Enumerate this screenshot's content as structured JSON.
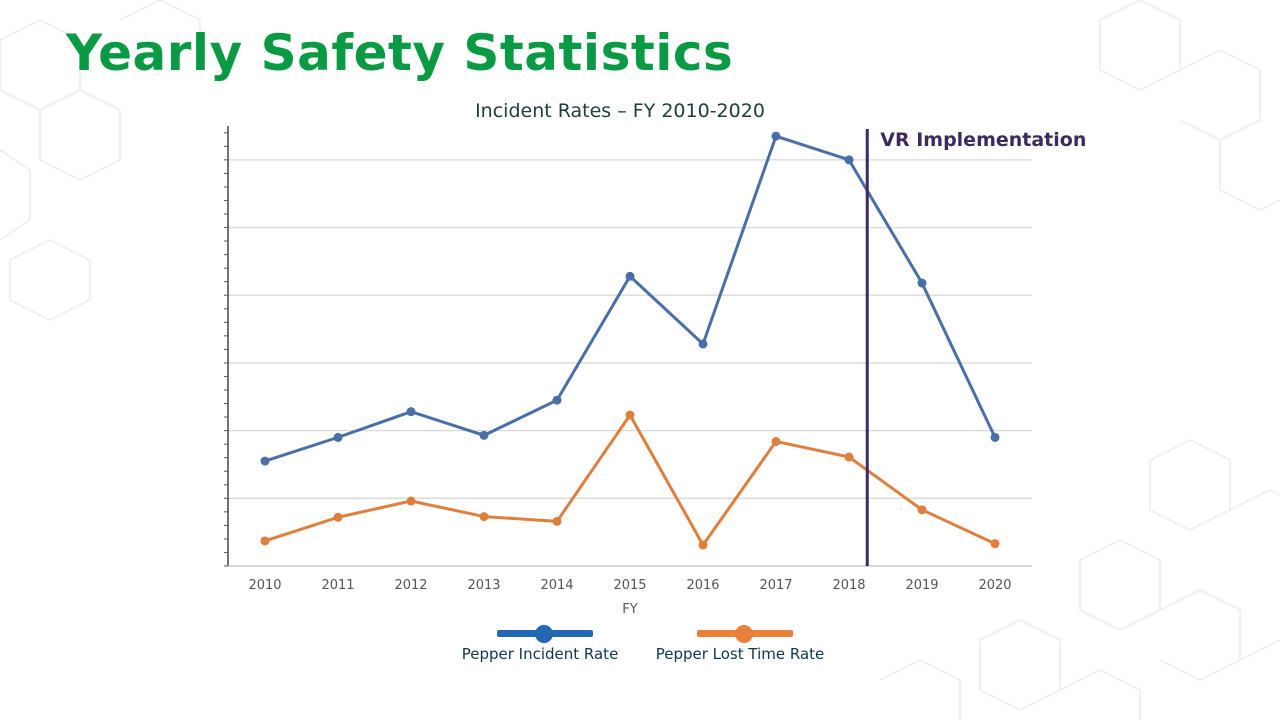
{
  "slide": {
    "title": "Yearly Safety Statistics"
  },
  "colors": {
    "title_green": "#0a9a44",
    "series_blue": "#4a6fa8",
    "series_orange": "#e07f3d",
    "legend_blue": "#2368b3",
    "legend_orange": "#e8803a",
    "vr_line": "#3d2a5e"
  },
  "chart_data": {
    "type": "line",
    "title": "Incident Rates – FY 2010-2020",
    "xlabel": "FY",
    "ylabel": "",
    "categories": [
      "2010",
      "2011",
      "2012",
      "2013",
      "2014",
      "2015",
      "2016",
      "2017",
      "2018",
      "2019",
      "2020"
    ],
    "ylim": [
      0,
      6.5
    ],
    "y_gridlines": [
      1,
      2,
      3,
      4,
      5,
      6
    ],
    "grid": true,
    "series": [
      {
        "name": "Pepper Incident Rate",
        "values": [
          1.55,
          1.9,
          2.28,
          1.93,
          2.45,
          4.28,
          3.28,
          6.35,
          6.0,
          4.18,
          1.9
        ]
      },
      {
        "name": "Pepper Lost Time Rate",
        "values": [
          0.37,
          0.72,
          0.96,
          0.73,
          0.66,
          2.23,
          0.31,
          1.84,
          1.61,
          0.83,
          0.33
        ]
      }
    ],
    "annotations": [
      {
        "text": "VR Implementation",
        "x_value": 2018.25
      }
    ],
    "legend_position": "bottom-center"
  }
}
